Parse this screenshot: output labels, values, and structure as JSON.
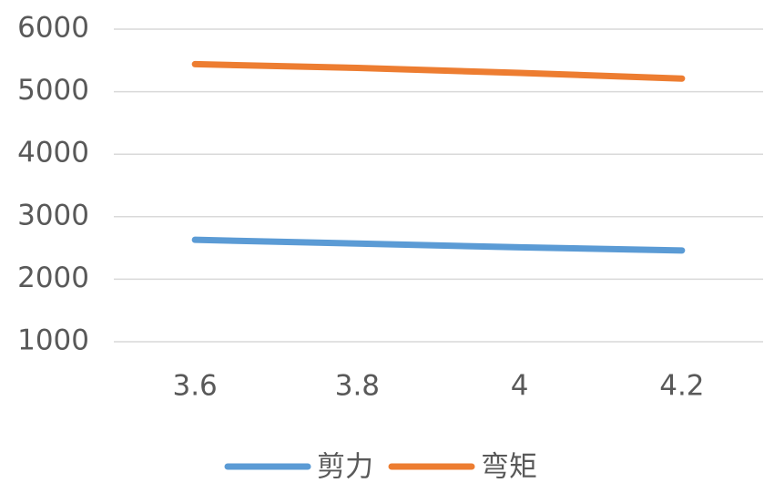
{
  "chart_data": {
    "type": "line",
    "categories": [
      "3.6",
      "3.8",
      "4",
      "4.2"
    ],
    "series": [
      {
        "name": "剪力",
        "color": "#5b9bd5",
        "values": [
          2630,
          2570,
          2510,
          2460
        ]
      },
      {
        "name": "弯矩",
        "color": "#ed7d31",
        "values": [
          5440,
          5380,
          5300,
          5210
        ]
      }
    ],
    "ylim": [
      1000,
      6000
    ],
    "yticks": [
      1000,
      2000,
      3000,
      4000,
      5000,
      6000
    ],
    "grid": true,
    "legend": "bottom"
  }
}
